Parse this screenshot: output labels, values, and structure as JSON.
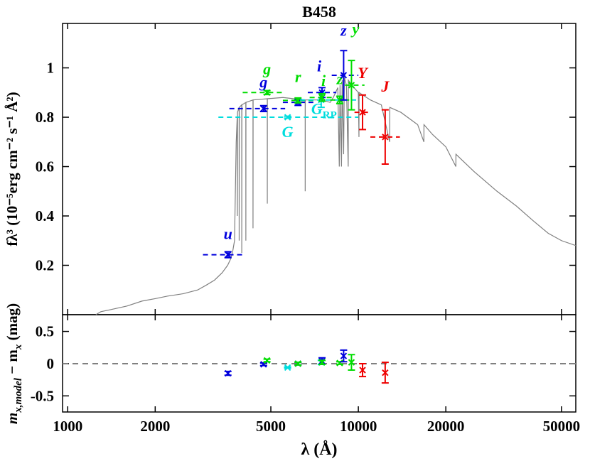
{
  "chart_data": {
    "type": "sed",
    "title": "B458",
    "xlabel": "λ (Å)",
    "ylabel": "fλ³ (10⁻⁵erg cm⁻² s⁻¹ Å²)",
    "ylabel2": [
      "m",
      "x,model",
      " − m",
      "x",
      " (mag)"
    ],
    "xscale": "log",
    "xlim": [
      960,
      56000
    ],
    "xticks": [
      1000,
      2000,
      5000,
      10000,
      20000,
      50000
    ],
    "ylim": [
      0,
      1.18
    ],
    "yticks": [
      0.2,
      0.4,
      0.6,
      0.8,
      1
    ],
    "y2lim": [
      -0.75,
      0.76
    ],
    "y2ticks": [
      -0.5,
      0,
      0.5
    ],
    "spectrum": {
      "color": "#808080",
      "x": [
        1250,
        1300,
        1400,
        1600,
        1800,
        2000,
        2200,
        2500,
        2800,
        3000,
        3200,
        3400,
        3550,
        3650,
        3700,
        3750,
        3800,
        3830,
        3835,
        3840,
        3889,
        3890,
        3895,
        3970,
        3971,
        3975,
        4100,
        4102,
        4105,
        4340,
        4341,
        4345,
        4861,
        4862,
        4865,
        5500,
        6000,
        6563,
        6564,
        6567,
        7500,
        8000,
        8200,
        8500,
        8600,
        8650,
        8750,
        8800,
        8900,
        8950,
        9100,
        9229,
        9240,
        9500,
        10000,
        10049,
        10060,
        11000,
        12000,
        12818,
        12830,
        14000,
        16000,
        16811,
        16820,
        18000,
        20000,
        21661,
        21670,
        25000,
        30000,
        35000,
        40000,
        45000,
        50000,
        56000
      ],
      "y": [
        0.0,
        0.012,
        0.02,
        0.035,
        0.055,
        0.065,
        0.075,
        0.085,
        0.1,
        0.12,
        0.14,
        0.17,
        0.2,
        0.23,
        0.26,
        0.3,
        0.7,
        0.8,
        0.4,
        0.82,
        0.84,
        0.3,
        0.84,
        0.85,
        0.25,
        0.85,
        0.86,
        0.3,
        0.86,
        0.87,
        0.35,
        0.87,
        0.875,
        0.45,
        0.875,
        0.88,
        0.875,
        0.87,
        0.5,
        0.87,
        0.87,
        0.86,
        0.88,
        0.92,
        0.6,
        0.93,
        0.6,
        0.95,
        0.65,
        0.96,
        0.93,
        0.6,
        0.95,
        0.93,
        0.9,
        0.72,
        0.9,
        0.87,
        0.85,
        0.7,
        0.84,
        0.82,
        0.77,
        0.7,
        0.77,
        0.73,
        0.68,
        0.6,
        0.65,
        0.58,
        0.5,
        0.44,
        0.38,
        0.33,
        0.3,
        0.28
      ]
    },
    "photometry": [
      {
        "name": "u",
        "color": "#0000dd",
        "wavelength": 3560,
        "band": [
          2920,
          4050
        ],
        "value": 0.243,
        "error": 0.012,
        "residual": -0.15,
        "residual_err": 0.03
      },
      {
        "name": "g",
        "color": "#0000dd",
        "wavelength": 4720,
        "band": [
          3600,
          5600
        ],
        "value": 0.835,
        "error": 0.012,
        "residual": -0.01,
        "residual_err": 0.02
      },
      {
        "name": "g",
        "color": "#00dd00",
        "wavelength": 4850,
        "band": [
          4000,
          5500
        ],
        "value": 0.9,
        "error": 0.008,
        "residual": 0.05,
        "residual_err": 0.02
      },
      {
        "color": "#0000dd",
        "wavelength": 6200,
        "band": [
          5500,
          7000
        ],
        "value": 0.86,
        "error": 0.012,
        "residual": 0.0,
        "residual_err": 0.02
      },
      {
        "name": "r",
        "color": "#00dd00",
        "wavelength": 6200,
        "band": [
          5500,
          7000
        ],
        "value": 0.868,
        "error": 0.01,
        "residual": 0.0,
        "residual_err": 0.02
      },
      {
        "name": "G",
        "color": "#00dddd",
        "wavelength": 5710,
        "band": [
          3300,
          10000
        ],
        "value": 0.8,
        "error": 0.004,
        "residual": -0.06,
        "residual_err": 0.01
      },
      {
        "name": "G",
        "subscript": "RP",
        "color": "#00dddd",
        "wavelength": 7450,
        "band": [
          6300,
          10000
        ],
        "value": 0.87,
        "error": 0.03,
        "residual": 0.02,
        "residual_err": 0.03
      },
      {
        "name": "i",
        "color": "#0000dd",
        "wavelength": 7500,
        "band": [
          6700,
          8400
        ],
        "value": 0.9,
        "error": 0.02,
        "residual": 0.04,
        "residual_err": 0.05
      },
      {
        "name": "i",
        "color": "#00dd00",
        "wavelength": 7500,
        "band": [
          6800,
          8300
        ],
        "value": 0.88,
        "error": 0.015,
        "residual": 0.02,
        "residual_err": 0.03
      },
      {
        "name": "z",
        "color": "#00dd00",
        "wavelength": 8630,
        "band": [
          8000,
          9300
        ],
        "value": 0.87,
        "error": 0.015,
        "residual": 0.01,
        "residual_err": 0.02
      },
      {
        "name": "z",
        "color": "#0000dd",
        "wavelength": 8900,
        "band": [
          8100,
          10000
        ],
        "value": 0.97,
        "error": 0.1,
        "residual": 0.12,
        "residual_err": 0.09
      },
      {
        "name": "y",
        "color": "#00dd00",
        "wavelength": 9470,
        "band": [
          9000,
          10500
        ],
        "value": 0.93,
        "error": 0.1,
        "residual": 0.02,
        "residual_err": 0.12
      },
      {
        "name": "Y",
        "color": "#ee0000",
        "wavelength": 10340,
        "band": [
          9700,
          11000
        ],
        "value": 0.82,
        "error": 0.07,
        "residual": -0.1,
        "residual_err": 0.1
      },
      {
        "name": "J",
        "color": "#ee0000",
        "wavelength": 12370,
        "band": [
          11000,
          13900
        ],
        "value": 0.72,
        "error": 0.11,
        "residual": -0.14,
        "residual_err": 0.16
      }
    ]
  }
}
